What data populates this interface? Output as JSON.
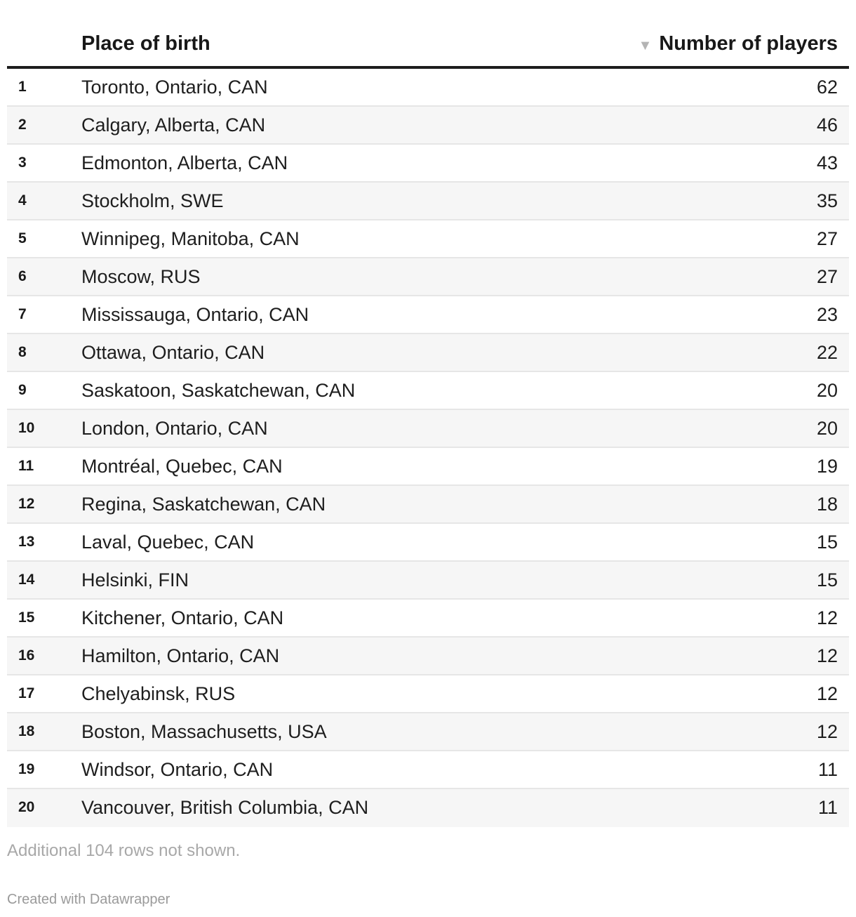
{
  "chart_data": {
    "type": "table",
    "columns": [
      "",
      "Place of birth",
      "Number of players"
    ],
    "sort": {
      "column": "Number of players",
      "direction": "descending",
      "icon": "sort-down-triangle-icon"
    },
    "rows": [
      {
        "rank": "1",
        "place": "Toronto, Ontario, CAN",
        "players": 62
      },
      {
        "rank": "2",
        "place": "Calgary, Alberta, CAN",
        "players": 46
      },
      {
        "rank": "3",
        "place": "Edmonton, Alberta, CAN",
        "players": 43
      },
      {
        "rank": "4",
        "place": "Stockholm, SWE",
        "players": 35
      },
      {
        "rank": "5",
        "place": "Winnipeg, Manitoba, CAN",
        "players": 27
      },
      {
        "rank": "6",
        "place": "Moscow, RUS",
        "players": 27
      },
      {
        "rank": "7",
        "place": "Mississauga, Ontario, CAN",
        "players": 23
      },
      {
        "rank": "8",
        "place": "Ottawa, Ontario, CAN",
        "players": 22
      },
      {
        "rank": "9",
        "place": "Saskatoon, Saskatchewan, CAN",
        "players": 20
      },
      {
        "rank": "10",
        "place": "London, Ontario, CAN",
        "players": 20
      },
      {
        "rank": "11",
        "place": "Montréal, Quebec, CAN",
        "players": 19
      },
      {
        "rank": "12",
        "place": "Regina, Saskatchewan, CAN",
        "players": 18
      },
      {
        "rank": "13",
        "place": "Laval, Quebec, CAN",
        "players": 15
      },
      {
        "rank": "14",
        "place": "Helsinki, FIN",
        "players": 15
      },
      {
        "rank": "15",
        "place": "Kitchener, Ontario, CAN",
        "players": 12
      },
      {
        "rank": "16",
        "place": "Hamilton, Ontario, CAN",
        "players": 12
      },
      {
        "rank": "17",
        "place": "Chelyabinsk, RUS",
        "players": 12
      },
      {
        "rank": "18",
        "place": "Boston, Massachusetts, USA",
        "players": 12
      },
      {
        "rank": "19",
        "place": "Windsor, Ontario, CAN",
        "players": 11
      },
      {
        "rank": "20",
        "place": "Vancouver, British Columbia, CAN",
        "players": 11
      }
    ],
    "note": "Additional 104 rows not shown.",
    "credit": "Created with Datawrapper"
  },
  "colors": {
    "header_rule": "#1d1d1d",
    "row_divider": "#e6e6e6",
    "row_alt_background": "#f6f6f6",
    "sort_icon": "#b4b4b4",
    "note_text": "#a8a8a8"
  }
}
